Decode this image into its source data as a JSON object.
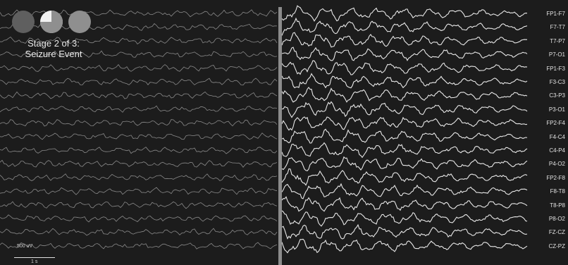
{
  "stage": {
    "title_line1": "Stage 2 of 3:",
    "title_line2": "Seizure Event",
    "indicators": [
      "stage-1-complete",
      "stage-2-in-progress",
      "stage-3-pending"
    ],
    "current": 2,
    "total": 3,
    "current_progress": 0.75
  },
  "channels": [
    "FP1-F7",
    "F7-T7",
    "T7-P7",
    "P7-O1",
    "FP1-F3",
    "F3-C3",
    "C3-P3",
    "P3-O1",
    "FP2-F4",
    "F4-C4",
    "C4-P4",
    "P4-O2",
    "FP2-F8",
    "F8-T8",
    "T8-P8",
    "P8-O2",
    "FZ-CZ",
    "CZ-PZ"
  ],
  "scale": {
    "voltage_label": "500 uV",
    "time_label": "1 s"
  },
  "colors": {
    "background": "#1c1c1c",
    "trace_dim": "#8a8a8a",
    "trace_bright": "#ffffff",
    "marker": "#8c8c8c",
    "indicator": "#8f8f8f",
    "indicator_dark": "#5f5f5f"
  }
}
